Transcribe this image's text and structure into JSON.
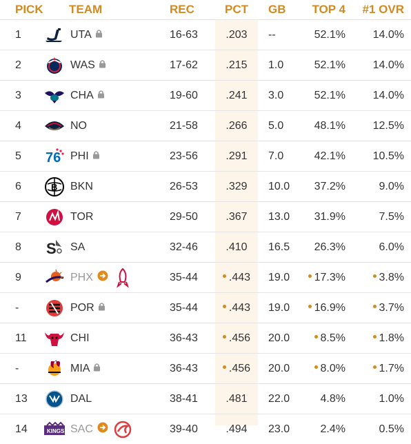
{
  "headers": {
    "pick": "PICK",
    "team": "TEAM",
    "rec": "REC",
    "pct": "PCT",
    "gb": "GB",
    "top4": "TOP 4",
    "ovr": "#1 OVR"
  },
  "colors": {
    "header_accent": "#d38a1f",
    "pct_band": "#fdf5ea",
    "dot": "#d38a1f"
  },
  "rows": [
    {
      "pick": "1",
      "team": "UTA",
      "logo": "jazz-logo-icon",
      "locked": true,
      "rec": "16-63",
      "pct": ".203",
      "gb": "--",
      "top4": "52.1%",
      "ovr": "14.0%"
    },
    {
      "pick": "2",
      "team": "WAS",
      "logo": "wizards-logo-icon",
      "locked": true,
      "rec": "17-62",
      "pct": ".215",
      "gb": "1.0",
      "top4": "52.1%",
      "ovr": "14.0%"
    },
    {
      "pick": "3",
      "team": "CHA",
      "logo": "hornets-logo-icon",
      "locked": true,
      "rec": "19-60",
      "pct": ".241",
      "gb": "3.0",
      "top4": "52.1%",
      "ovr": "14.0%"
    },
    {
      "pick": "4",
      "team": "NO",
      "logo": "pelicans-logo-icon",
      "locked": false,
      "rec": "21-58",
      "pct": ".266",
      "gb": "5.0",
      "top4": "48.1%",
      "ovr": "12.5%"
    },
    {
      "pick": "5",
      "team": "PHI",
      "logo": "sixers-logo-icon",
      "locked": true,
      "rec": "23-56",
      "pct": ".291",
      "gb": "7.0",
      "top4": "42.1%",
      "ovr": "10.5%"
    },
    {
      "pick": "6",
      "team": "BKN",
      "logo": "nets-logo-icon",
      "locked": false,
      "rec": "26-53",
      "pct": ".329",
      "gb": "10.0",
      "top4": "37.2%",
      "ovr": "9.0%"
    },
    {
      "pick": "7",
      "team": "TOR",
      "logo": "raptors-logo-icon",
      "locked": false,
      "rec": "29-50",
      "pct": ".367",
      "gb": "13.0",
      "top4": "31.9%",
      "ovr": "7.5%"
    },
    {
      "pick": "8",
      "team": "SA",
      "logo": "spurs-logo-icon",
      "locked": false,
      "rec": "32-46",
      "pct": ".410",
      "gb": "16.5",
      "top4": "26.3%",
      "ovr": "6.0%"
    },
    {
      "pick": "9",
      "team": "PHX",
      "logo": "suns-logo-icon",
      "locked": false,
      "traded_to": "rockets-logo-icon",
      "dot": true,
      "rec": "35-44",
      "pct": ".443",
      "gb": "19.0",
      "top4": "17.3%",
      "ovr": "3.8%"
    },
    {
      "pick": "-",
      "team": "POR",
      "logo": "blazers-logo-icon",
      "locked": true,
      "dot": true,
      "rec": "35-44",
      "pct": ".443",
      "gb": "19.0",
      "top4": "16.9%",
      "ovr": "3.7%"
    },
    {
      "pick": "11",
      "team": "CHI",
      "logo": "bulls-logo-icon",
      "locked": false,
      "dot": true,
      "rec": "36-43",
      "pct": ".456",
      "gb": "20.0",
      "top4": "8.5%",
      "ovr": "1.8%"
    },
    {
      "pick": "-",
      "team": "MIA",
      "logo": "heat-logo-icon",
      "locked": true,
      "dot": true,
      "rec": "36-43",
      "pct": ".456",
      "gb": "20.0",
      "top4": "8.0%",
      "ovr": "1.7%"
    },
    {
      "pick": "13",
      "team": "DAL",
      "logo": "mavericks-logo-icon",
      "locked": false,
      "rec": "38-41",
      "pct": ".481",
      "gb": "22.0",
      "top4": "4.8%",
      "ovr": "1.0%"
    },
    {
      "pick": "14",
      "team": "SAC",
      "logo": "kings-logo-icon",
      "locked": false,
      "traded_to": "hawks-logo-icon",
      "rec": "39-40",
      "pct": ".494",
      "gb": "23.0",
      "top4": "2.4%",
      "ovr": "0.5%"
    }
  ]
}
